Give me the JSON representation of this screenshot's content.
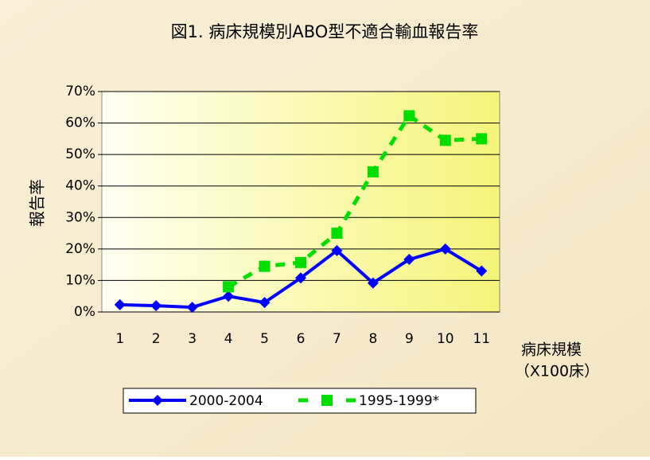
{
  "chart_data": {
    "type": "line",
    "title": "図1. 病床規模別ABO型不適合輸血報告率",
    "y_label": "報告率",
    "x_label": [
      "病床規模",
      "（X100床）"
    ],
    "categories": [
      "1",
      "2",
      "3",
      "4",
      "5",
      "6",
      "7",
      "8",
      "9",
      "10",
      "11"
    ],
    "series": [
      {
        "name": "2000-2004",
        "color": "#0000ff",
        "values": [
          2.3,
          2.0,
          1.5,
          5.0,
          3.0,
          10.8,
          19.5,
          9.2,
          16.7,
          20.0,
          13.0
        ]
      },
      {
        "name": "1995-1999*",
        "color": "#00dd00",
        "values": [
          null,
          null,
          null,
          8.0,
          14.5,
          15.7,
          25.0,
          44.5,
          62.3,
          54.5,
          55.0
        ]
      }
    ],
    "ylim": [
      0,
      70
    ],
    "yticks": [
      {
        "value": 0,
        "label": "0%"
      },
      {
        "value": 10,
        "label": "10%"
      },
      {
        "value": 20,
        "label": "20%"
      },
      {
        "value": 30,
        "label": "30%"
      },
      {
        "value": 40,
        "label": "40%"
      },
      {
        "value": 50,
        "label": "50%"
      },
      {
        "value": 60,
        "label": "60%"
      },
      {
        "value": 70,
        "label": "70%"
      }
    ],
    "grid": true
  }
}
